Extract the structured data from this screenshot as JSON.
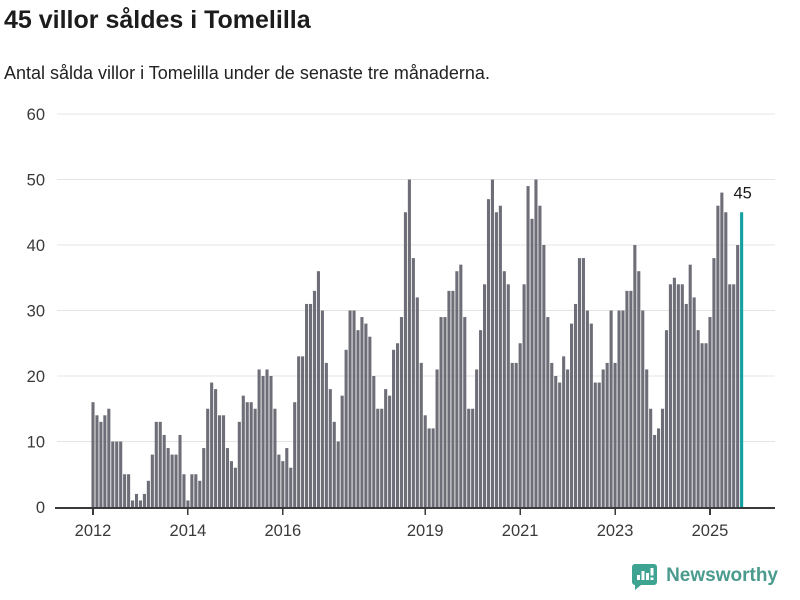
{
  "header": {
    "title": "45 villor såldes i Tomelilla",
    "subtitle": "Antal sålda villor i Tomelilla under de senaste tre månaderna."
  },
  "chart_data": {
    "type": "bar",
    "title": "45 villor såldes i Tomelilla",
    "subtitle": "Antal sålda villor i Tomelilla under de senaste tre månaderna.",
    "xlabel": "",
    "ylabel": "",
    "ylim": [
      0,
      60
    ],
    "y_ticks": [
      0,
      10,
      20,
      30,
      40,
      50,
      60
    ],
    "x_tick_years": [
      2012,
      2014,
      2016,
      2019,
      2021,
      2023,
      2025
    ],
    "period_start": "2012-01",
    "period_end": "2025-09",
    "grid": "horizontal",
    "legend": "none",
    "values_by_year": {
      "2012": [
        16,
        14,
        13,
        14,
        15,
        10,
        10,
        10,
        5,
        5,
        1,
        2
      ],
      "2013": [
        1,
        2,
        4,
        8,
        13,
        13,
        11,
        9,
        8,
        8,
        11,
        5
      ],
      "2014": [
        1,
        5,
        5,
        4,
        9,
        15,
        19,
        18,
        14,
        14,
        9,
        7
      ],
      "2015": [
        6,
        13,
        17,
        16,
        16,
        15,
        21,
        20,
        21,
        20,
        15,
        8
      ],
      "2016": [
        7,
        9,
        6,
        16,
        23,
        23,
        31,
        31,
        33,
        36,
        30,
        22
      ],
      "2017": [
        18,
        13,
        10,
        17,
        24,
        30,
        30,
        27,
        29,
        28,
        26,
        20
      ],
      "2018": [
        15,
        15,
        18,
        17,
        24,
        25,
        29,
        45,
        50,
        38,
        32,
        22
      ],
      "2019": [
        14,
        12,
        12,
        21,
        29,
        29,
        33,
        33,
        36,
        37,
        29,
        15
      ],
      "2020": [
        15,
        21,
        27,
        34,
        47,
        50,
        45,
        46,
        36,
        34,
        22,
        22
      ],
      "2021": [
        25,
        34,
        49,
        44,
        50,
        46,
        40,
        29,
        22,
        20,
        19,
        23
      ],
      "2022": [
        21,
        28,
        31,
        38,
        38,
        30,
        28,
        19,
        19,
        21,
        22,
        30
      ],
      "2023": [
        22,
        30,
        30,
        33,
        33,
        40,
        36,
        30,
        21,
        15,
        11,
        12
      ],
      "2024": [
        15,
        27,
        34,
        35,
        34,
        34,
        31,
        37,
        32,
        27,
        25,
        25
      ],
      "2025": [
        29,
        38,
        46,
        48,
        45,
        34,
        34,
        40,
        45
      ]
    },
    "highlight": {
      "period": "2025-09",
      "value": 45,
      "label": "45"
    },
    "colors": {
      "bar": "#6e6e78",
      "highlight": "#12a0a0",
      "grid": "#e4e4e4",
      "axis": "#3a3a3a",
      "tick_text": "#3a3a3a",
      "annotation_text": "#1a1a1a"
    }
  },
  "footer": {
    "brand": "Newsworthy",
    "logo_icon": "bar-chart-speech-bubble",
    "brand_color": "#4a9b8d",
    "icon_color": "#3ea390"
  }
}
